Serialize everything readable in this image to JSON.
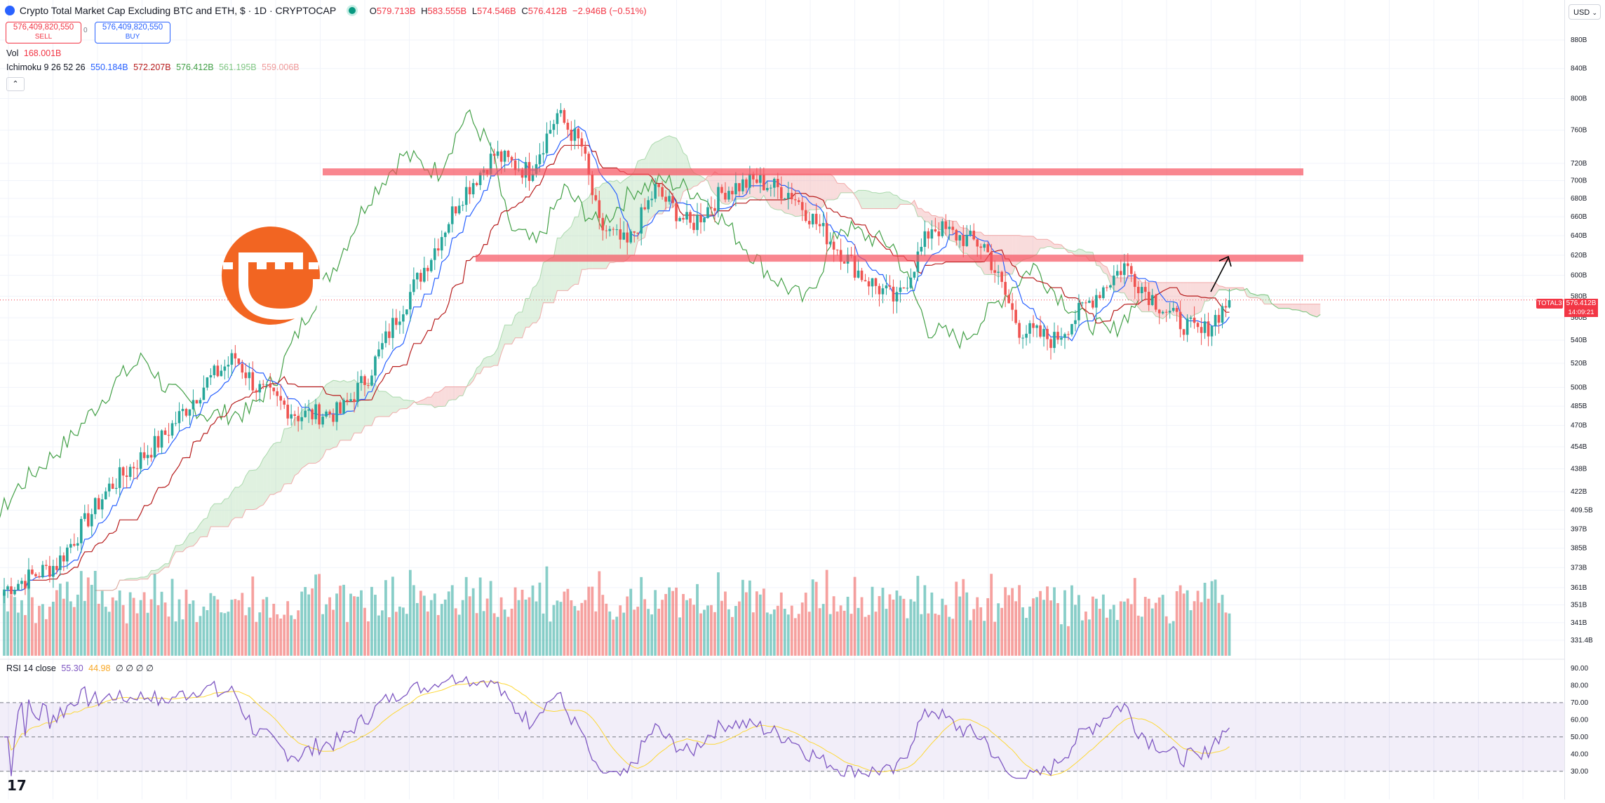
{
  "header": {
    "title": "Crypto Total Market Cap Excluding BTC and ETH, $ · 1D · CRYPTOCAP",
    "ohlc": {
      "o_label": "O",
      "o": "579.713B",
      "h_label": "H",
      "h": "583.555B",
      "l_label": "L",
      "l": "574.546B",
      "c_label": "C",
      "c": "576.412B",
      "change": "−2.946B (−0.51%)"
    },
    "sell_price": "576,409,820,550",
    "sell_label": "SELL",
    "buy_price": "576,409,820,550",
    "buy_label": "BUY",
    "spread": "0",
    "currency": "USD"
  },
  "legends": {
    "vol_label": "Vol",
    "vol_value": "168.001B",
    "ichimoku_label": "Ichimoku 9 26 52 26",
    "ichimoku_values": [
      "550.184B",
      "572.207B",
      "576.412B",
      "561.195B",
      "559.006B"
    ],
    "rsi_label": "RSI 14 close",
    "rsi_values": [
      "55.30",
      "44.98",
      "∅",
      "∅",
      "∅",
      "∅"
    ]
  },
  "price_tag": {
    "symbol": "TOTAL3",
    "price": "576.412B",
    "countdown": "14:09:21"
  },
  "colors": {
    "up": "#26a69a",
    "down": "#ef5350",
    "tenkan": "#2962ff",
    "kijun": "#b71c1c",
    "lagging": "#43a047",
    "cloud_bull": "#a5d6a7",
    "cloud_bear": "#ef9a9a",
    "sr_zone": "#f7525f",
    "rsi": "#7e57c2",
    "rsi_ma": "#fdd835"
  },
  "watermark_icon": "bitcoin-b-logo",
  "chart_data": [
    {
      "type": "candlestick",
      "title": "Crypto Total Market Cap Excluding BTC and ETH",
      "y_unit": "USD (billions)",
      "scale": "log",
      "y_ticks": [
        "331.4B",
        "341B",
        "351B",
        "361B",
        "373B",
        "385B",
        "397B",
        "409.5B",
        "422B",
        "438B",
        "454B",
        "470B",
        "485B",
        "500B",
        "520B",
        "540B",
        "560B",
        "580B",
        "600B",
        "620B",
        "640B",
        "660B",
        "680B",
        "700B",
        "720B",
        "760B",
        "800B",
        "840B",
        "880B"
      ],
      "ylim": [
        325,
        920
      ],
      "resistance_zones": [
        710,
        617
      ],
      "close_trend": [
        [
          0,
          360
        ],
        [
          15,
          375
        ],
        [
          30,
          425
        ],
        [
          45,
          460
        ],
        [
          58,
          505
        ],
        [
          66,
          525
        ],
        [
          72,
          500
        ],
        [
          84,
          478
        ],
        [
          96,
          480
        ],
        [
          104,
          510
        ],
        [
          112,
          560
        ],
        [
          122,
          620
        ],
        [
          130,
          680
        ],
        [
          140,
          730
        ],
        [
          150,
          710
        ],
        [
          158,
          780
        ],
        [
          165,
          740
        ],
        [
          170,
          650
        ],
        [
          178,
          630
        ],
        [
          186,
          690
        ],
        [
          196,
          650
        ],
        [
          206,
          690
        ],
        [
          215,
          700
        ],
        [
          225,
          685
        ],
        [
          235,
          640
        ],
        [
          245,
          600
        ],
        [
          255,
          575
        ],
        [
          265,
          650
        ],
        [
          272,
          640
        ],
        [
          280,
          630
        ],
        [
          290,
          550
        ],
        [
          300,
          540
        ],
        [
          310,
          575
        ],
        [
          320,
          610
        ],
        [
          326,
          585
        ],
        [
          334,
          560
        ],
        [
          342,
          545
        ],
        [
          350,
          576
        ]
      ]
    },
    {
      "type": "bar",
      "title": "Volume",
      "last_value": "168.001B"
    },
    {
      "type": "line",
      "title": "RSI 14 close",
      "y_ticks": [
        "30.00",
        "40.00",
        "50.00",
        "60.00",
        "70.00",
        "80.00",
        "90.00"
      ],
      "ylim": [
        25,
        92
      ],
      "bands": [
        30,
        50,
        70
      ],
      "last_value": 55.3,
      "ma_last_value": 44.98
    }
  ]
}
